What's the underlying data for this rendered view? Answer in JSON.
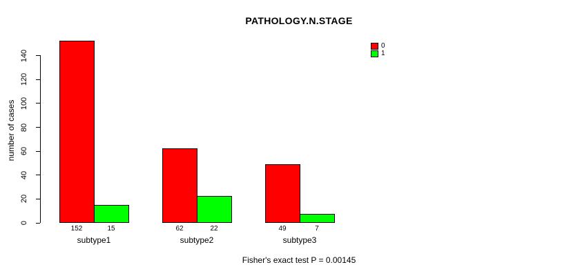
{
  "figure": {
    "background": "#ffffff"
  },
  "chart_data": {
    "type": "bar",
    "title": "PATHOLOGY.N.STAGE",
    "xlabel": "",
    "ylabel": "number of cases",
    "categories": [
      "subtype1",
      "subtype2",
      "subtype3"
    ],
    "series": [
      {
        "name": "0",
        "color": "#ff0000",
        "values": [
          152,
          62,
          49
        ]
      },
      {
        "name": "1",
        "color": "#00ff00",
        "values": [
          15,
          22,
          7
        ]
      }
    ],
    "bar_value_labels": [
      [
        "152",
        "15"
      ],
      [
        "62",
        "22"
      ],
      [
        "49",
        "7"
      ]
    ],
    "ylim": [
      0,
      152
    ],
    "yticks": [
      0,
      20,
      40,
      60,
      80,
      100,
      120,
      140
    ],
    "grid": false,
    "legend": {
      "position": "top-right-inside",
      "items": [
        {
          "label": "0",
          "color": "#ff0000"
        },
        {
          "label": "1",
          "color": "#00ff00"
        }
      ]
    },
    "annotation": "Fisher's exact test P = 0.00145"
  }
}
